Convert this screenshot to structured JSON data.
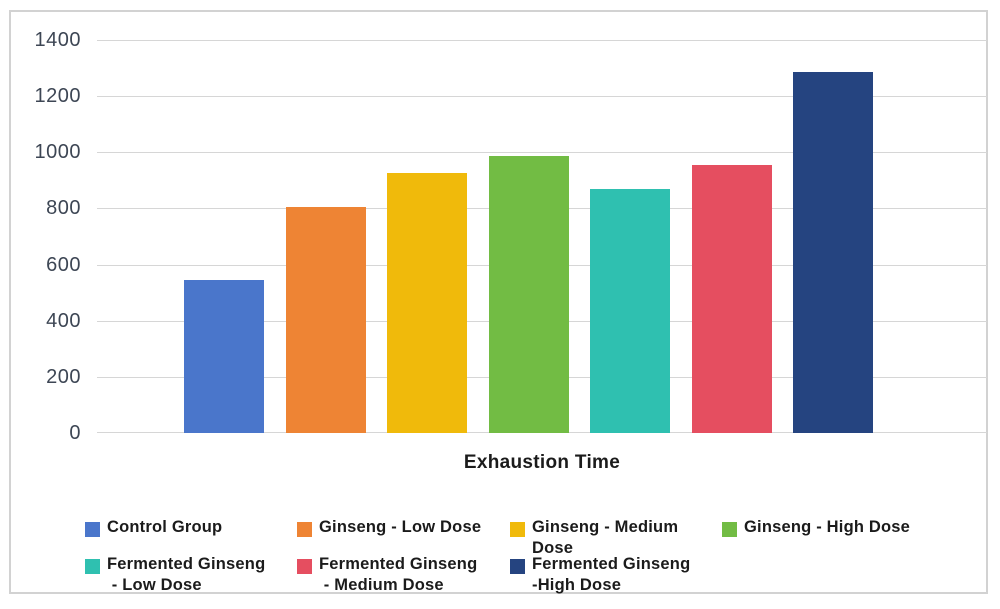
{
  "chart_data": {
    "type": "bar",
    "title": "",
    "xlabel": "Exhaustion Time",
    "ylabel": "",
    "ylim": [
      0,
      1400
    ],
    "ytick_step": 200,
    "yticks": [
      1400,
      1200,
      1000,
      800,
      600,
      400,
      200,
      0
    ],
    "grid": true,
    "legend_position": "bottom",
    "categories": [
      "Control Group",
      "Ginseng - Low Dose",
      "Ginseng - Medium Dose",
      "Ginseng - High Dose",
      "Fermented Ginseng - Low Dose",
      "Fermented Ginseng - Medium Dose",
      "Fermented Ginseng -High Dose"
    ],
    "values": [
      545,
      805,
      925,
      985,
      870,
      955,
      1285
    ],
    "colors": [
      "#4a76cb",
      "#ee8434",
      "#f0ba0b",
      "#72bc44",
      "#2fc0b0",
      "#e54e60",
      "#254480"
    ]
  },
  "legend": {
    "items": [
      {
        "label": "Control Group",
        "color": "#4a76cb"
      },
      {
        "label": "Ginseng - Low Dose",
        "color": "#ee8434"
      },
      {
        "label": "Ginseng - Medium\nDose",
        "color": "#f0ba0b"
      },
      {
        "label": "Ginseng - High Dose",
        "color": "#72bc44"
      },
      {
        "label": "Fermented Ginseng\n - Low Dose",
        "color": "#2fc0b0"
      },
      {
        "label": "Fermented Ginseng\n - Medium Dose",
        "color": "#e54e60"
      },
      {
        "label": "Fermented Ginseng\n-High Dose",
        "color": "#254480"
      }
    ]
  },
  "ui_colors": {
    "background": "#ffffff",
    "frame_border": "#d2d2d2",
    "gridline": "#d6d6d6",
    "axis_text": "#3d4654",
    "label_text": "#1b1b1b"
  }
}
